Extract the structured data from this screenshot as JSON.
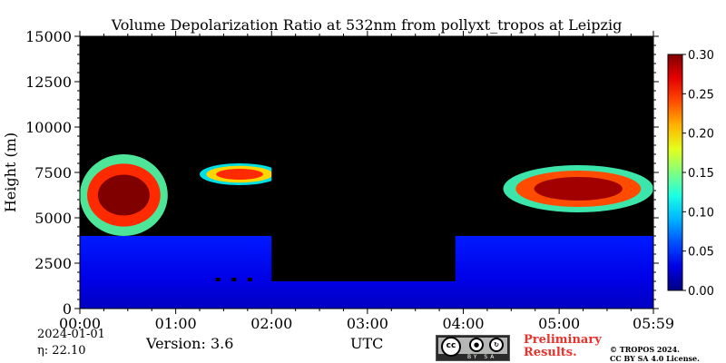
{
  "chart_data": {
    "type": "heatmap",
    "title": "Volume Depolarization Ratio at 532nm from pollyxt_tropos at Leipzig",
    "xlabel": "UTC",
    "ylabel": "Height (m)",
    "xlim": [
      "00:00",
      "05:59"
    ],
    "ylim": [
      0,
      15000
    ],
    "x_ticks": [
      "00:00",
      "01:00",
      "02:00",
      "03:00",
      "04:00",
      "05:00",
      "05:59"
    ],
    "y_ticks": [
      0,
      2500,
      5000,
      7500,
      10000,
      12500,
      15000
    ],
    "colorbar": {
      "range": [
        0.0,
        0.3
      ],
      "ticks": [
        "0.00",
        "0.05",
        "0.10",
        "0.15",
        "0.20",
        "0.25",
        "0.30"
      ],
      "colormap": "jet"
    },
    "background_color": "#000000",
    "features": [
      {
        "kind": "boundary_layer",
        "start": "00:00",
        "end": "05:59",
        "top_m_approx": 1500,
        "value_approx": 0.03
      },
      {
        "kind": "cloud",
        "start": "00:00",
        "end": "00:55",
        "bottom_m": 4000,
        "top_m": 8500,
        "value_approx": 0.25
      },
      {
        "kind": "cloud",
        "start": "01:15",
        "end": "02:05",
        "bottom_m": 6800,
        "top_m": 8000,
        "value_approx": 0.2
      },
      {
        "kind": "cloud",
        "start": "04:25",
        "end": "05:59",
        "bottom_m": 5300,
        "top_m": 7900,
        "value_approx": 0.24
      },
      {
        "kind": "no_data_gap",
        "start": "02:00",
        "end": "03:55",
        "below_m": 1500
      }
    ]
  },
  "info": {
    "date": "2024-01-01",
    "eta": "η:  22.10",
    "version": "Version: 3.6",
    "xlabel_text": "UTC",
    "preliminary_line1": "Preliminary",
    "preliminary_line2": "Results.",
    "copyright_line1": "© TROPOS 2024.",
    "copyright_line2": "CC BY SA 4.0 License.",
    "cc_badge": {
      "cc": "cc",
      "by": "BY",
      "sa": "SA"
    }
  }
}
